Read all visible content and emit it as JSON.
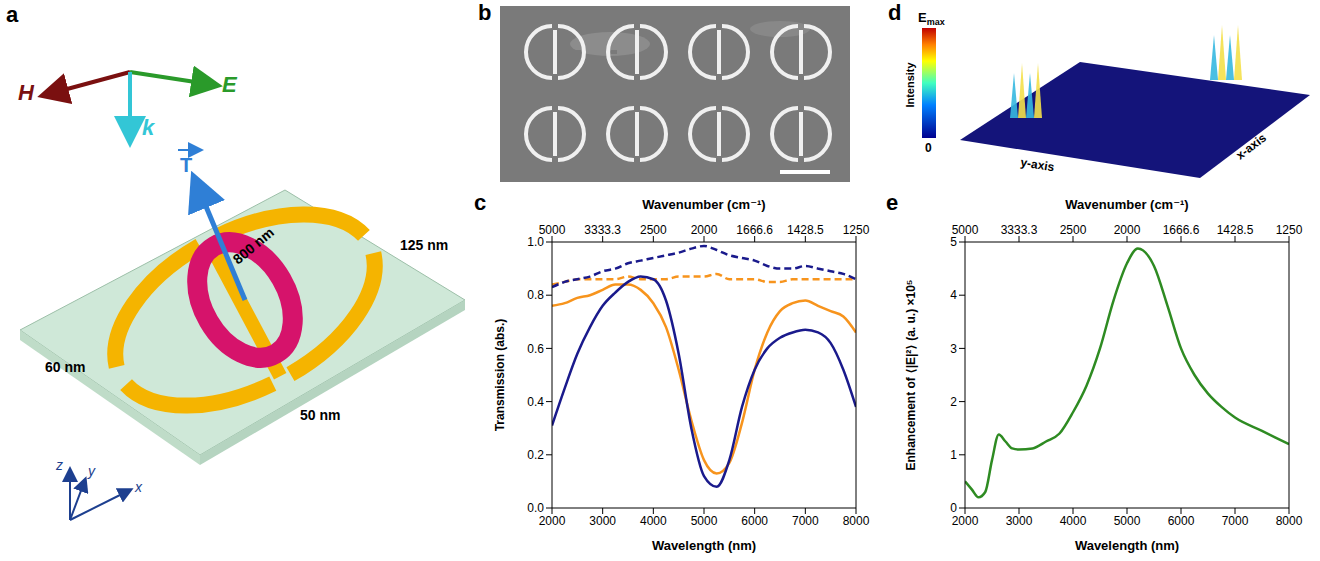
{
  "panels": {
    "a": {
      "letter": "a",
      "field_labels": [
        "H",
        "E",
        "k"
      ],
      "toroidal_label": "T",
      "dimensions": [
        "800 nm",
        "125 nm",
        "60 nm",
        "50 nm"
      ],
      "axes": [
        "x",
        "y",
        "z"
      ]
    },
    "b": {
      "letter": "b"
    },
    "d": {
      "letter": "d",
      "colorbar_top": "Emax",
      "colorbar_bottom": 0,
      "colorbar_label": "Intensity",
      "axis_labels": [
        "y-axis",
        "x-axis"
      ]
    }
  },
  "chart_data": [
    {
      "panel": "c",
      "type": "line",
      "xlabel": "Wavelength (nm)",
      "x2label": "Wavenumber (cm⁻¹)",
      "ylabel": "Transmission (abs.)",
      "xlim": [
        2000,
        8000
      ],
      "xticks": [
        2000,
        3000,
        4000,
        5000,
        6000,
        7000,
        8000
      ],
      "x2lim": [
        2000,
        8000
      ],
      "x2ticks": [
        {
          "value": 2000,
          "label": "5000"
        },
        {
          "value": 3000,
          "label": "3333.3"
        },
        {
          "value": 4000,
          "label": "2500"
        },
        {
          "value": 5000,
          "label": "2000"
        },
        {
          "value": 6000,
          "label": "1666.6"
        },
        {
          "value": 7000,
          "label": "1428.5"
        },
        {
          "value": 8000,
          "label": "1250"
        }
      ],
      "ylim": [
        0,
        1
      ],
      "yticks": [
        {
          "value": 0,
          "label": "0.0"
        },
        0.2,
        0.4,
        0.6,
        0.8,
        {
          "value": 1,
          "label": "1.0"
        }
      ],
      "x": [
        2000,
        2250,
        2500,
        2750,
        3000,
        3250,
        3500,
        3750,
        4000,
        4250,
        4500,
        4750,
        5000,
        5250,
        5500,
        5750,
        6000,
        6250,
        6500,
        6750,
        7000,
        7250,
        7500,
        7750,
        8000
      ],
      "series": [
        {
          "color": "#f7941d",
          "line_style": "solid",
          "values": [
            0.76,
            0.77,
            0.79,
            0.8,
            0.82,
            0.84,
            0.84,
            0.82,
            0.77,
            0.68,
            0.52,
            0.33,
            0.18,
            0.13,
            0.17,
            0.32,
            0.52,
            0.66,
            0.74,
            0.77,
            0.78,
            0.76,
            0.74,
            0.72,
            0.66
          ]
        },
        {
          "color": "#f7941d",
          "line_style": "dashed",
          "values": [
            0.84,
            0.85,
            0.86,
            0.86,
            0.86,
            0.86,
            0.87,
            0.86,
            0.86,
            0.86,
            0.87,
            0.87,
            0.87,
            0.88,
            0.86,
            0.86,
            0.86,
            0.85,
            0.85,
            0.86,
            0.86,
            0.86,
            0.86,
            0.86,
            0.86
          ]
        },
        {
          "color": "#1a1a8c",
          "line_style": "solid",
          "values": [
            0.31,
            0.45,
            0.58,
            0.68,
            0.76,
            0.81,
            0.85,
            0.87,
            0.86,
            0.78,
            0.58,
            0.3,
            0.12,
            0.08,
            0.18,
            0.38,
            0.52,
            0.6,
            0.64,
            0.66,
            0.67,
            0.66,
            0.62,
            0.52,
            0.38
          ]
        },
        {
          "color": "#1a1a8c",
          "line_style": "dashed",
          "values": [
            0.83,
            0.85,
            0.86,
            0.87,
            0.89,
            0.9,
            0.92,
            0.93,
            0.94,
            0.95,
            0.96,
            0.975,
            0.985,
            0.97,
            0.95,
            0.94,
            0.93,
            0.91,
            0.9,
            0.9,
            0.91,
            0.9,
            0.89,
            0.88,
            0.86
          ]
        }
      ]
    },
    {
      "panel": "e",
      "type": "line",
      "xlabel": "Wavelength (nm)",
      "x2label": "Wavenumber (cm⁻¹)",
      "ylabel": "Enhancement of ⟨|E|²⟩ (a. u.) ×10⁵",
      "xlim": [
        2000,
        8000
      ],
      "xticks": [
        2000,
        3000,
        4000,
        5000,
        6000,
        7000,
        8000
      ],
      "x2lim": [
        2000,
        8000
      ],
      "x2ticks": [
        {
          "value": 2000,
          "label": "5000"
        },
        {
          "value": 3000,
          "label": "3333.3"
        },
        {
          "value": 4000,
          "label": "2500"
        },
        {
          "value": 5000,
          "label": "2000"
        },
        {
          "value": 6000,
          "label": "1666.6"
        },
        {
          "value": 7000,
          "label": "1428.5"
        },
        {
          "value": 8000,
          "label": "1250"
        }
      ],
      "ylim": [
        0,
        5
      ],
      "yticks": [
        0,
        1,
        2,
        3,
        4,
        5
      ],
      "x": [
        2000,
        2125,
        2250,
        2375,
        2500,
        2625,
        2750,
        2875,
        3000,
        3250,
        3500,
        3750,
        4000,
        4250,
        4500,
        4750,
        5000,
        5200,
        5500,
        5750,
        6000,
        6250,
        6500,
        6750,
        7000,
        7500,
        8000
      ],
      "series": [
        {
          "color": "#2e8b22",
          "line_style": "solid",
          "values": [
            0.5,
            0.35,
            0.2,
            0.3,
            0.9,
            1.38,
            1.25,
            1.12,
            1.1,
            1.12,
            1.25,
            1.4,
            1.8,
            2.3,
            3.0,
            3.9,
            4.6,
            4.88,
            4.55,
            3.8,
            3.0,
            2.5,
            2.15,
            1.9,
            1.7,
            1.45,
            1.2
          ]
        }
      ]
    }
  ]
}
